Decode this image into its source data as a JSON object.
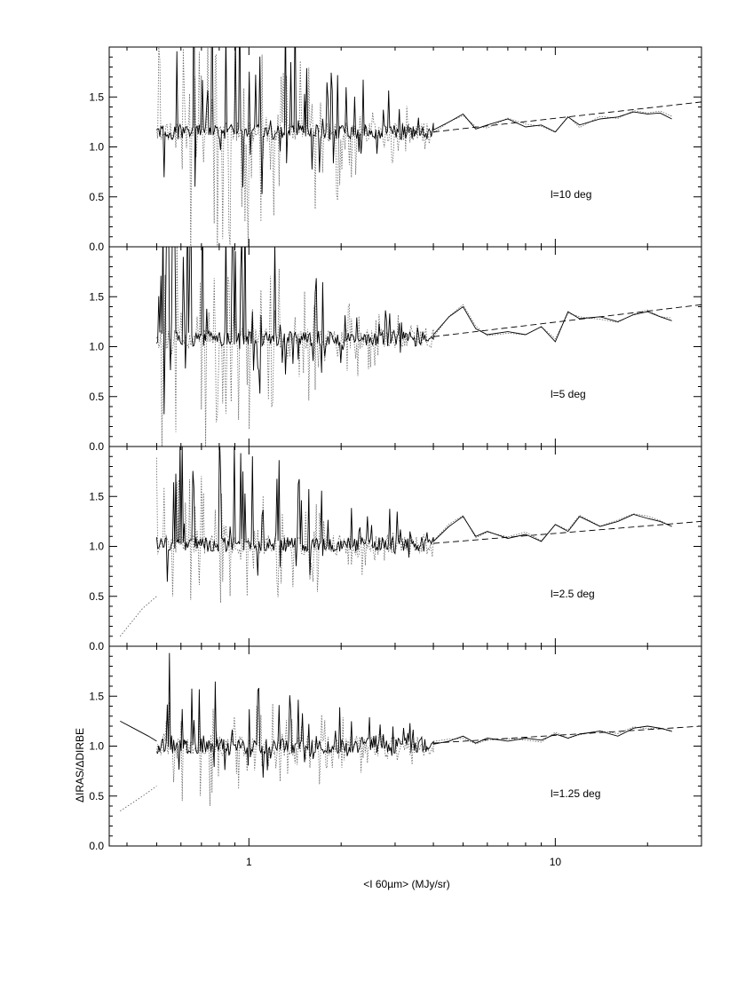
{
  "chart_data": {
    "type": "line",
    "figure": {
      "xlabel": "<I 60µm> (MJy/sr)",
      "ylabel": "ΔIRAS/ΔDIRBE",
      "xscale": "log",
      "xlim": [
        0.35,
        30
      ],
      "ylim": [
        0,
        2
      ],
      "x_tick_labels": [
        "1",
        "10"
      ],
      "y_tick_labels": [
        "0.0",
        "0.5",
        "1.0",
        "1.5"
      ],
      "y_ticks": [
        0.0,
        0.5,
        1.0,
        1.5
      ]
    },
    "panels": [
      {
        "label": "l=10 deg",
        "solid_start_x": 0.5,
        "solid_baseline": 1.15,
        "solid_tail": {
          "x": [
            4.0,
            4.5,
            5.0,
            5.5,
            6.0,
            7.0,
            8.0,
            9.0,
            10.0,
            11.0,
            12.0,
            14.0,
            16.0,
            18.0,
            20.0,
            22.0,
            24.0
          ],
          "y": [
            1.17,
            1.25,
            1.33,
            1.18,
            1.22,
            1.28,
            1.2,
            1.22,
            1.15,
            1.3,
            1.22,
            1.28,
            1.3,
            1.35,
            1.33,
            1.34,
            1.28
          ]
        },
        "fit": {
          "x": [
            4.0,
            30.0
          ],
          "y": [
            1.15,
            1.45
          ]
        }
      },
      {
        "label": "l=5 deg",
        "solid_start_x": 0.5,
        "solid_baseline": 1.08,
        "solid_tail": {
          "x": [
            4.0,
            4.5,
            5.0,
            5.5,
            6.0,
            7.0,
            8.0,
            9.0,
            10.0,
            11.0,
            12.0,
            14.0,
            16.0,
            18.0,
            20.0,
            22.0,
            24.0
          ],
          "y": [
            1.12,
            1.3,
            1.4,
            1.18,
            1.12,
            1.15,
            1.12,
            1.2,
            1.05,
            1.35,
            1.28,
            1.3,
            1.25,
            1.32,
            1.35,
            1.3,
            1.26
          ]
        },
        "fit": {
          "x": [
            4.0,
            30.0
          ],
          "y": [
            1.1,
            1.42
          ]
        }
      },
      {
        "label": "l=2.5 deg",
        "solid_start_x": 0.5,
        "solid_baseline": 1.02,
        "solid_tail": {
          "x": [
            4.0,
            4.5,
            5.0,
            5.5,
            6.0,
            7.0,
            8.0,
            9.0,
            10.0,
            11.0,
            12.0,
            14.0,
            16.0,
            18.0,
            20.0,
            22.0,
            24.0
          ],
          "y": [
            1.05,
            1.2,
            1.3,
            1.1,
            1.15,
            1.08,
            1.12,
            1.05,
            1.22,
            1.15,
            1.3,
            1.2,
            1.25,
            1.32,
            1.28,
            1.25,
            1.2
          ]
        },
        "fit": {
          "x": [
            4.0,
            30.0
          ],
          "y": [
            1.03,
            1.25
          ]
        },
        "dotted_left": {
          "x": [
            0.38,
            0.45,
            0.5
          ],
          "y": [
            0.1,
            0.38,
            0.5
          ]
        }
      },
      {
        "label": "l=1.25 deg",
        "solid_start_x": 0.5,
        "solid_baseline": 1.0,
        "solid_left": {
          "x": [
            0.38,
            0.42,
            0.47,
            0.5
          ],
          "y": [
            1.25,
            1.18,
            1.1,
            1.05
          ]
        },
        "solid_tail": {
          "x": [
            4.0,
            4.5,
            5.0,
            5.5,
            6.0,
            7.0,
            8.0,
            9.0,
            10.0,
            11.0,
            12.0,
            14.0,
            16.0,
            18.0,
            20.0,
            22.0,
            24.0
          ],
          "y": [
            1.02,
            1.05,
            1.1,
            1.03,
            1.08,
            1.05,
            1.08,
            1.06,
            1.12,
            1.08,
            1.12,
            1.15,
            1.1,
            1.18,
            1.2,
            1.18,
            1.15
          ]
        },
        "fit": {
          "x": [
            4.0,
            30.0
          ],
          "y": [
            1.03,
            1.2
          ]
        },
        "dotted_left": {
          "x": [
            0.38,
            0.45,
            0.5
          ],
          "y": [
            0.35,
            0.5,
            0.6
          ]
        }
      }
    ]
  }
}
